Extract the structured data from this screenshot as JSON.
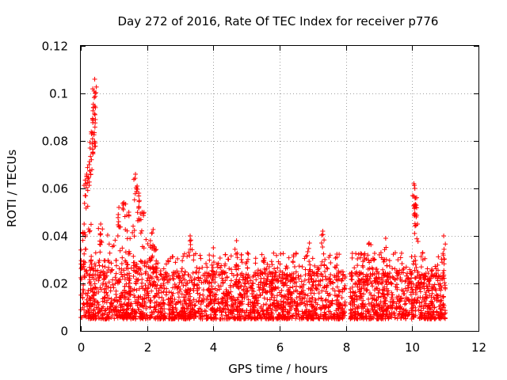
{
  "chart_data": {
    "type": "scatter",
    "title": "Day 272 of 2016, Rate Of TEC Index for receiver p776",
    "xlabel": "GPS time / hours",
    "ylabel": "ROTI / TECUs",
    "xlim": [
      0,
      12
    ],
    "ylim": [
      0,
      0.12
    ],
    "xticks": [
      0,
      2,
      4,
      6,
      8,
      10,
      12
    ],
    "yticks": [
      0,
      0.02,
      0.04,
      0.06,
      0.08,
      0.1,
      0.12
    ],
    "xtick_labels": [
      "0",
      "2",
      "4",
      "6",
      "8",
      "10",
      "12"
    ],
    "ytick_labels": [
      "0",
      "0.02",
      "0.04",
      "0.06",
      "0.08",
      "0.1",
      "0.12"
    ],
    "grid": true,
    "marker": "+",
    "color": "#ff0000",
    "series": [
      {
        "name": "ROTI",
        "x_range": [
          0,
          11
        ],
        "baseline_band": [
          0.005,
          0.025
        ],
        "notable_points": [
          {
            "x": 0.1,
            "y": 0.045
          },
          {
            "x": 0.15,
            "y": 0.062
          },
          {
            "x": 0.18,
            "y": 0.066
          },
          {
            "x": 0.25,
            "y": 0.07
          },
          {
            "x": 0.28,
            "y": 0.077
          },
          {
            "x": 0.32,
            "y": 0.083
          },
          {
            "x": 0.36,
            "y": 0.089
          },
          {
            "x": 0.38,
            "y": 0.094
          },
          {
            "x": 0.4,
            "y": 0.101
          },
          {
            "x": 0.42,
            "y": 0.106
          },
          {
            "x": 0.44,
            "y": 0.089
          },
          {
            "x": 0.6,
            "y": 0.045
          },
          {
            "x": 1.15,
            "y": 0.052
          },
          {
            "x": 1.3,
            "y": 0.054
          },
          {
            "x": 1.45,
            "y": 0.05
          },
          {
            "x": 1.65,
            "y": 0.066
          },
          {
            "x": 1.7,
            "y": 0.061
          },
          {
            "x": 1.75,
            "y": 0.058
          },
          {
            "x": 1.85,
            "y": 0.05
          },
          {
            "x": 2.1,
            "y": 0.038
          },
          {
            "x": 2.25,
            "y": 0.034
          },
          {
            "x": 3.3,
            "y": 0.04
          },
          {
            "x": 4.0,
            "y": 0.035
          },
          {
            "x": 4.7,
            "y": 0.038
          },
          {
            "x": 6.9,
            "y": 0.037
          },
          {
            "x": 7.3,
            "y": 0.042
          },
          {
            "x": 8.7,
            "y": 0.037
          },
          {
            "x": 9.2,
            "y": 0.039
          },
          {
            "x": 10.05,
            "y": 0.062
          },
          {
            "x": 10.08,
            "y": 0.06
          },
          {
            "x": 10.1,
            "y": 0.056
          },
          {
            "x": 10.12,
            "y": 0.048
          },
          {
            "x": 10.95,
            "y": 0.04
          }
        ]
      }
    ]
  }
}
